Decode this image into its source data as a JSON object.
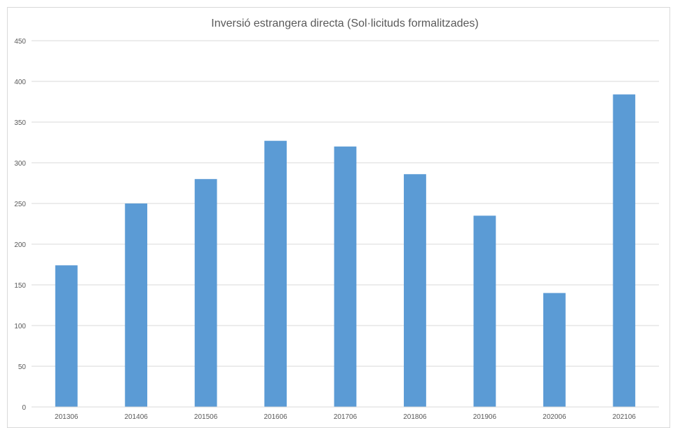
{
  "chart_data": {
    "type": "bar",
    "title": "Inversió estrangera directa (Sol·licituds formalitzades)",
    "xlabel": "",
    "ylabel": "",
    "categories": [
      "201306",
      "201406",
      "201506",
      "201606",
      "201706",
      "201806",
      "201906",
      "202006",
      "202106"
    ],
    "values": [
      174,
      250,
      280,
      327,
      320,
      286,
      235,
      140,
      384
    ],
    "ylim": [
      0,
      450
    ],
    "yticks": [
      "0",
      "50",
      "100",
      "150",
      "200",
      "250",
      "300",
      "350",
      "400",
      "450"
    ],
    "grid": true,
    "legend": "none",
    "bar_color": "#5b9bd5"
  }
}
